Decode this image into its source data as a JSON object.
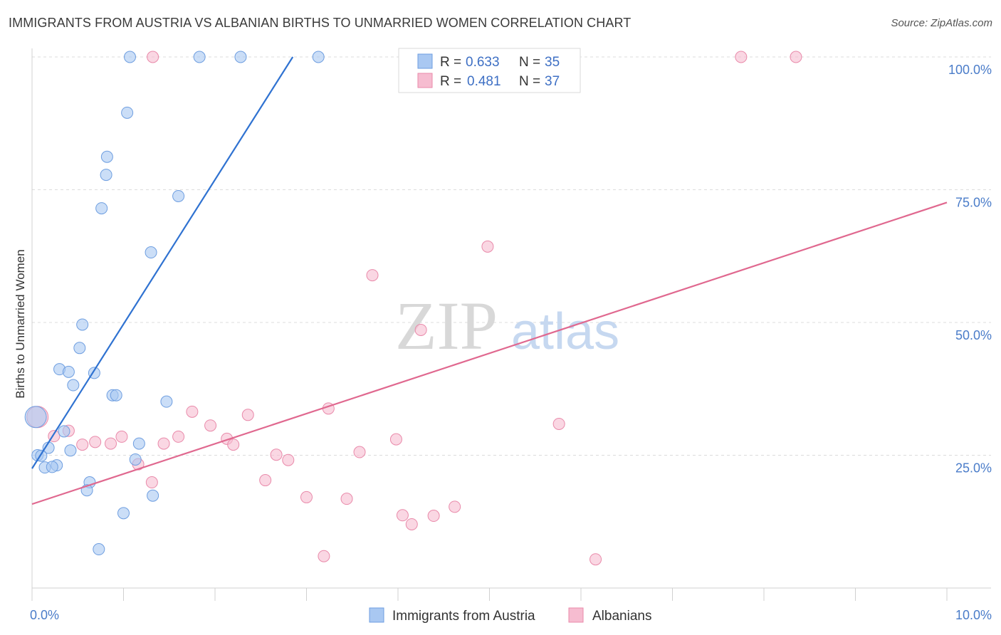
{
  "header": {
    "title": "IMMIGRANTS FROM AUSTRIA VS ALBANIAN BIRTHS TO UNMARRIED WOMEN CORRELATION CHART",
    "source": "Source: ZipAtlas.com"
  },
  "watermark": {
    "zip": "ZIP",
    "atlas": "atlas"
  },
  "legend": {
    "entries": [
      {
        "r_label": "R = ",
        "r_value": "0.633",
        "n_label": "N = ",
        "n_value": "35"
      },
      {
        "r_label": "R = ",
        "r_value": "0.481",
        "n_label": "N = ",
        "n_value": "37"
      }
    ]
  },
  "bottom_legend": [
    "Immigrants from Austria",
    "Albanians"
  ],
  "chart_data": {
    "type": "scatter",
    "ylabel": "Births to Unmarried Women",
    "xlim": [
      0,
      10
    ],
    "ylim": [
      0,
      100
    ],
    "x_tick_labels": [
      {
        "value": 0,
        "label": "0.0%"
      },
      {
        "value": 10,
        "label": "10.0%"
      }
    ],
    "y_tick_labels": [
      {
        "value": 25,
        "label": "25.0%"
      },
      {
        "value": 50,
        "label": "50.0%"
      },
      {
        "value": 75,
        "label": "75.0%"
      },
      {
        "value": 100,
        "label": "100.0%"
      }
    ],
    "grid": true,
    "colors": {
      "series1": "#a9c8f2",
      "series1_line": "#2f72d1",
      "series2": "#f6bcd0",
      "series2_line": "#e0688f",
      "tick_text": "#4a7cc9"
    },
    "series": [
      {
        "name": "Immigrants from Austria",
        "color": "#a9c8f2",
        "trend": {
          "x": [
            0.0,
            2.85
          ],
          "y": [
            22.5,
            100.0
          ]
        },
        "points": [
          [
            1.07,
            100
          ],
          [
            1.83,
            100
          ],
          [
            2.28,
            100
          ],
          [
            3.13,
            100
          ],
          [
            1.04,
            89.5
          ],
          [
            0.82,
            81.2
          ],
          [
            0.81,
            77.8
          ],
          [
            0.76,
            71.5
          ],
          [
            1.6,
            73.8
          ],
          [
            1.3,
            63.2
          ],
          [
            0.55,
            49.6
          ],
          [
            0.52,
            45.2
          ],
          [
            0.3,
            41.2
          ],
          [
            0.4,
            40.7
          ],
          [
            0.68,
            40.5
          ],
          [
            0.45,
            38.2
          ],
          [
            0.88,
            36.3
          ],
          [
            0.92,
            36.3
          ],
          [
            1.47,
            35.1
          ],
          [
            0.04,
            32.2
          ],
          [
            0.35,
            29.5
          ],
          [
            0.18,
            26.4
          ],
          [
            1.17,
            27.2
          ],
          [
            0.42,
            25.9
          ],
          [
            0.06,
            25.0
          ],
          [
            0.1,
            24.9
          ],
          [
            1.13,
            24.2
          ],
          [
            0.27,
            23.1
          ],
          [
            0.14,
            22.7
          ],
          [
            0.22,
            22.8
          ],
          [
            0.63,
            19.9
          ],
          [
            0.6,
            18.4
          ],
          [
            1.32,
            17.4
          ],
          [
            1.0,
            14.1
          ],
          [
            0.73,
            7.3
          ]
        ]
      },
      {
        "name": "Albanians",
        "color": "#f6bcd0",
        "trend": {
          "x": [
            0.0,
            10.0
          ],
          "y": [
            15.8,
            72.6
          ]
        },
        "points": [
          [
            7.75,
            100
          ],
          [
            8.35,
            100
          ],
          [
            4.98,
            64.3
          ],
          [
            3.72,
            58.9
          ],
          [
            4.25,
            48.6
          ],
          [
            0.06,
            32.2
          ],
          [
            1.75,
            33.2
          ],
          [
            2.36,
            32.6
          ],
          [
            3.24,
            33.8
          ],
          [
            5.76,
            30.9
          ],
          [
            0.4,
            29.6
          ],
          [
            0.24,
            28.6
          ],
          [
            0.98,
            28.5
          ],
          [
            1.6,
            28.5
          ],
          [
            1.95,
            30.6
          ],
          [
            2.13,
            28.1
          ],
          [
            2.2,
            27.0
          ],
          [
            0.55,
            27.0
          ],
          [
            0.69,
            27.5
          ],
          [
            0.86,
            27.2
          ],
          [
            1.44,
            27.2
          ],
          [
            3.98,
            28.0
          ],
          [
            3.58,
            25.6
          ],
          [
            2.67,
            25.1
          ],
          [
            2.8,
            24.1
          ],
          [
            1.16,
            23.3
          ],
          [
            1.31,
            19.9
          ],
          [
            2.55,
            20.3
          ],
          [
            3.0,
            17.1
          ],
          [
            3.44,
            16.8
          ],
          [
            4.62,
            15.3
          ],
          [
            4.05,
            13.7
          ],
          [
            4.39,
            13.6
          ],
          [
            4.15,
            12.0
          ],
          [
            3.19,
            6.0
          ],
          [
            6.16,
            5.4
          ],
          [
            1.32,
            100
          ]
        ]
      }
    ]
  }
}
